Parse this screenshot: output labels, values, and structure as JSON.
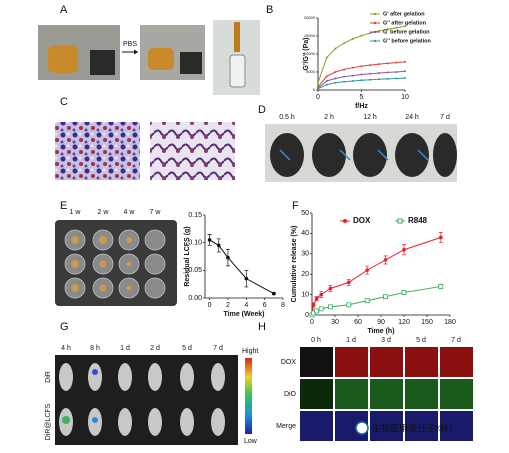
{
  "panels": [
    {
      "label": "A",
      "texts": [
        "PBS"
      ]
    },
    {
      "label": "B"
    },
    {
      "label": "C"
    },
    {
      "label": "D",
      "texts": [
        "0.5 h",
        "2 h",
        "12 h",
        "24 h",
        "7 d"
      ]
    },
    {
      "label": "E",
      "texts": [
        "1 w",
        "2 w",
        "4 w",
        "7 w"
      ]
    },
    {
      "label": "F"
    },
    {
      "label": "G",
      "texts": [
        "4 h",
        "8 h",
        "1 d",
        "2 d",
        "5 d",
        "7 d"
      ],
      "rows": [
        "DiR",
        "DiR@LCFS"
      ],
      "scale": [
        "Hight",
        "Low"
      ]
    },
    {
      "label": "H",
      "texts": [
        "0 h",
        "1 d",
        "3 d",
        "5 d",
        "7 d"
      ],
      "rows": [
        "DOX",
        "DiO",
        "Merge"
      ]
    }
  ],
  "watermark": "生物医用高分子材料",
  "chart_data": [
    {
      "type": "line",
      "x_label": "f/Hz",
      "y_label": "G'/G'' (Pa)",
      "x": [
        0,
        1,
        2,
        3,
        4,
        5,
        6,
        7,
        8,
        9,
        10
      ],
      "xlim": [
        0,
        10
      ],
      "xticks": [
        0,
        5,
        10
      ],
      "ylim": [
        0,
        20000
      ],
      "yticks": [
        0,
        5000,
        10000,
        15000,
        20000
      ],
      "series": [
        {
          "name": "G' after gelation",
          "color": "#9a9a2a",
          "values": [
            2000,
            9000,
            11500,
            13000,
            14200,
            15100,
            15800,
            16400,
            16900,
            17300,
            17700
          ]
        },
        {
          "name": "G'' after gelation",
          "color": "#e0403a",
          "values": [
            800,
            3800,
            5000,
            5700,
            6200,
            6600,
            6900,
            7200,
            7400,
            7600,
            7800
          ]
        },
        {
          "name": "G' before gelation",
          "color": "#8a5aa0",
          "values": [
            500,
            2500,
            3200,
            3700,
            4000,
            4300,
            4500,
            4700,
            4900,
            5000,
            5200
          ]
        },
        {
          "name": "G'' before gelation",
          "color": "#2a9aa0",
          "values": [
            300,
            1500,
            2000,
            2300,
            2500,
            2700,
            2850,
            3000,
            3100,
            3200,
            3300
          ]
        }
      ]
    },
    {
      "type": "line",
      "x_label": "Time (Week)",
      "y_label": "Residual LCFS (g)",
      "x": [
        0,
        1,
        2,
        4,
        7
      ],
      "xlim": [
        -0.5,
        8
      ],
      "xticks": [
        0,
        2,
        4,
        6,
        8
      ],
      "ylim": [
        0,
        0.15
      ],
      "yticks": [
        {
          "value": 0,
          "label": "0.00"
        },
        {
          "value": 0.05,
          "label": "0.05"
        },
        {
          "value": 0.1,
          "label": "0.10"
        },
        {
          "value": 0.15,
          "label": "0.15"
        }
      ],
      "series": [
        {
          "name": null,
          "color": "#111111",
          "marker": "circle",
          "values": [
            0.105,
            0.095,
            0.073,
            0.035,
            0.008
          ],
          "errors": [
            0.01,
            0.012,
            0.015,
            0.015,
            0.002
          ]
        }
      ]
    },
    {
      "type": "line",
      "x_label": "Time (h)",
      "y_label": "Cumulative release (%)",
      "x": [
        0,
        2,
        6,
        12,
        24,
        48,
        72,
        96,
        120,
        168
      ],
      "xlim": [
        0,
        180
      ],
      "xticks": [
        0,
        30,
        60,
        90,
        120,
        150,
        180
      ],
      "ylim": [
        0,
        50
      ],
      "yticks": [
        0,
        10,
        20,
        30,
        40,
        50
      ],
      "series": [
        {
          "name": "DOX",
          "color": "#e8202a",
          "marker": "circle",
          "values": [
            0,
            5,
            8,
            10,
            13,
            16,
            22,
            27,
            32,
            38
          ],
          "errors": [
            0,
            1,
            1,
            1.5,
            1.5,
            1.5,
            2,
            2,
            2.5,
            2.5
          ]
        },
        {
          "name": "R848",
          "color": "#3aaa5a",
          "marker": "square",
          "values": [
            0,
            1,
            2,
            3,
            4,
            5,
            7,
            9,
            11,
            14
          ],
          "errors": [
            0,
            0.5,
            0.5,
            0.5,
            0.5,
            0.5,
            0.8,
            0.8,
            1,
            1
          ]
        }
      ]
    }
  ]
}
